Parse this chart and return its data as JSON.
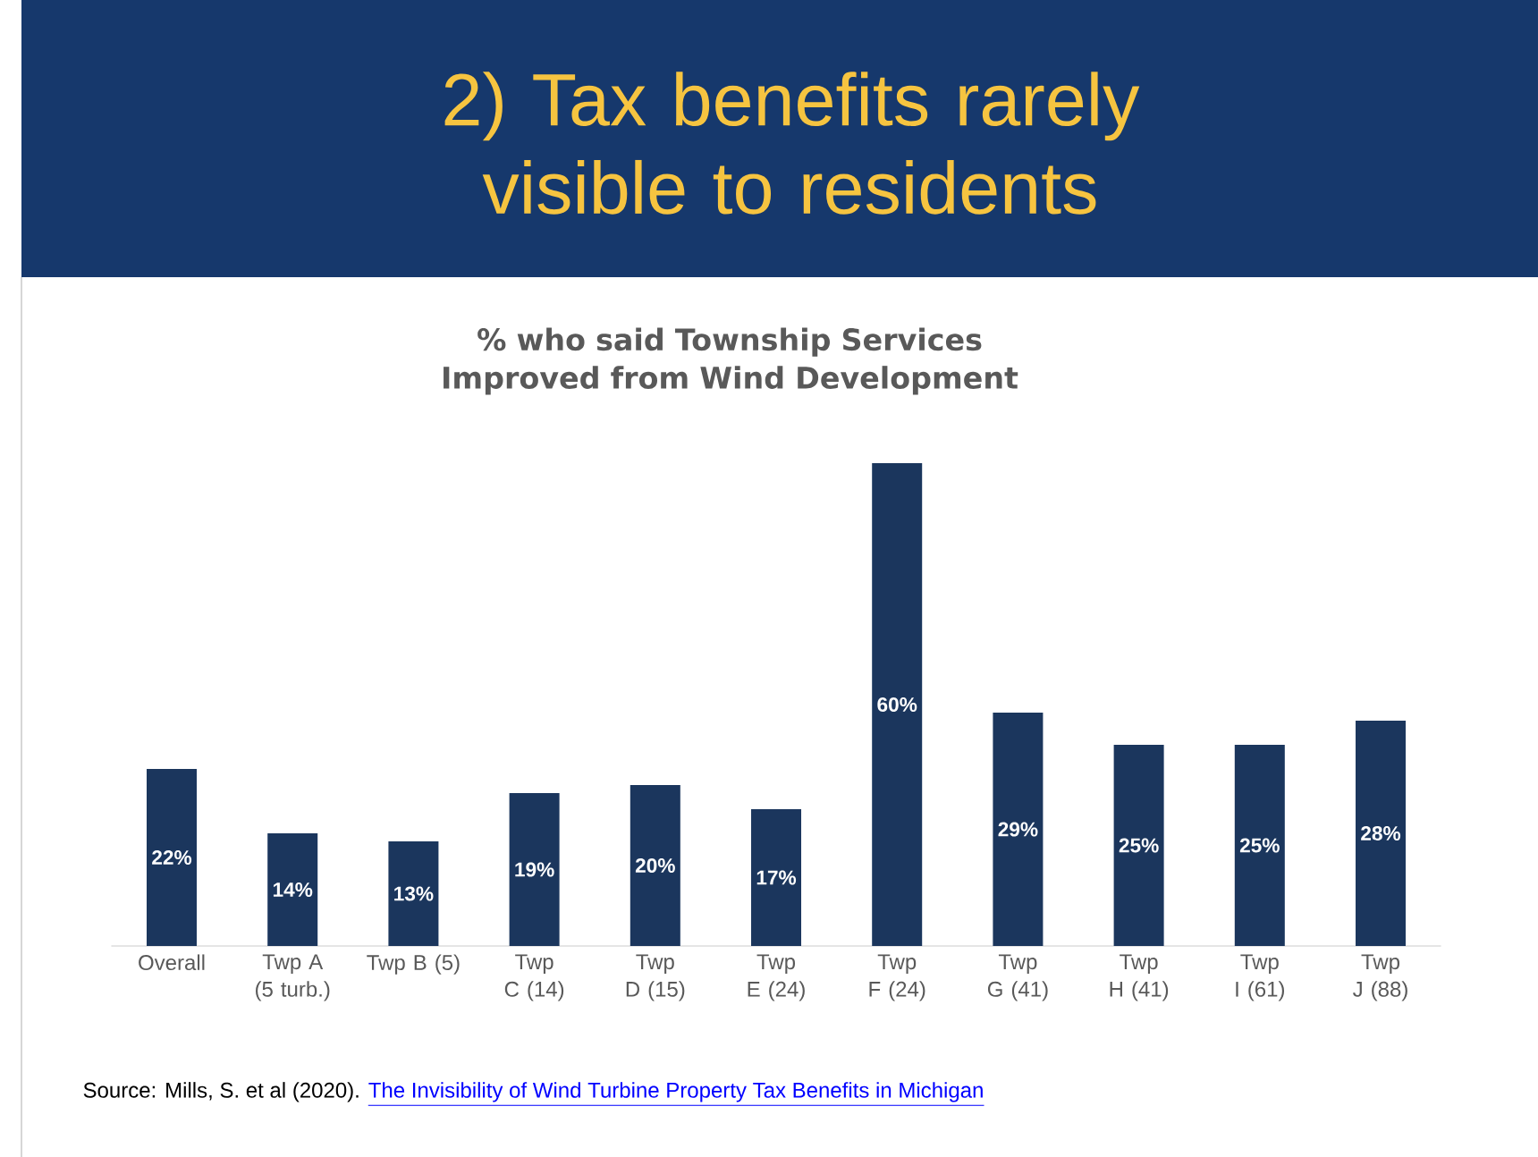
{
  "chart_data": {
    "type": "bar",
    "title": "2) Tax benefits rarely visible to residents",
    "subtitle": "% who said Township Services Improved from Wind Development",
    "categories": [
      "Overall",
      "Twp A (5 turb.)",
      "Twp B (5)",
      "Twp C (14)",
      "Twp D (15)",
      "Twp E (24)",
      "Twp F (24)",
      "Twp G (41)",
      "Twp H (41)",
      "Twp I (61)",
      "Twp J (88)"
    ],
    "values": [
      22,
      14,
      13,
      19,
      20,
      17,
      60,
      29,
      25,
      25,
      28
    ],
    "value_labels": [
      "22%",
      "14%",
      "13%",
      "19%",
      "20%",
      "17%",
      "60%",
      "29%",
      "25%",
      "25%",
      "28%"
    ],
    "color": "#1b365d",
    "annotations": [
      "Source:  Mills, S. et al (2020). ",
      "The Invisibility of Wind Turbine Property Tax Benefits in Michigan"
    ]
  }
}
